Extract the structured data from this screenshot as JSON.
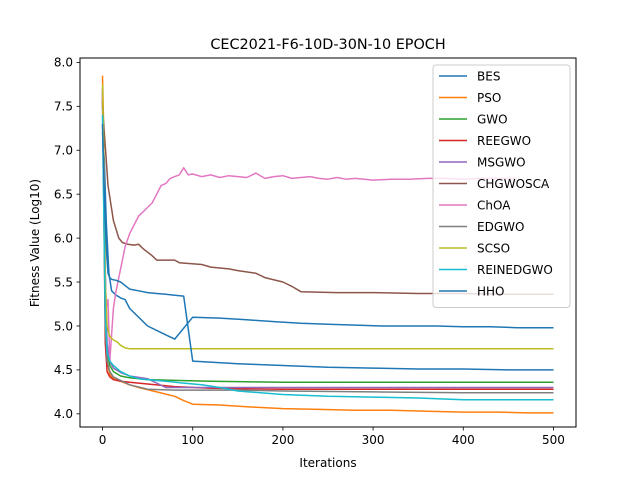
{
  "chart_data": {
    "type": "line",
    "title": "CEC2021-F6-10D-30N-10 EPOCH",
    "xlabel": "Iterations",
    "ylabel": "Fitness Value (Log10)",
    "xlim": [
      -25,
      525
    ],
    "ylim": [
      3.85,
      8.05
    ],
    "xticks": [
      0,
      100,
      200,
      300,
      400,
      500
    ],
    "yticks": [
      4.0,
      4.5,
      5.0,
      5.5,
      6.0,
      6.5,
      7.0,
      7.5,
      8.0
    ],
    "ytick_labels": [
      "4.0",
      "4.5",
      "5.0",
      "5.5",
      "6.0",
      "6.5",
      "7.0",
      "7.5",
      "8.0"
    ],
    "grid": false,
    "legend_position": "top-right",
    "series": [
      {
        "name": "BES",
        "color": "#1f77b4",
        "x": [
          0,
          2,
          4,
          7,
          10,
          15,
          20,
          25,
          30,
          40,
          50,
          60,
          70,
          80,
          100,
          130,
          160,
          190,
          220,
          250,
          280,
          310,
          340,
          370,
          400,
          430,
          460,
          500
        ],
        "y": [
          7.2,
          6.9,
          6.2,
          5.6,
          5.4,
          5.35,
          5.32,
          5.3,
          5.2,
          5.1,
          5.0,
          4.95,
          4.9,
          4.85,
          5.1,
          5.09,
          5.07,
          5.05,
          5.03,
          5.02,
          5.01,
          5.0,
          5.0,
          5.0,
          4.99,
          4.99,
          4.98,
          4.98
        ]
      },
      {
        "name": "PSO",
        "color": "#ff7f0e",
        "x": [
          0,
          1,
          3,
          5,
          8,
          12,
          20,
          30,
          40,
          60,
          80,
          90,
          100,
          130,
          160,
          200,
          240,
          280,
          320,
          360,
          400,
          440,
          470,
          500
        ],
        "y": [
          7.85,
          7.4,
          5.2,
          4.6,
          4.45,
          4.4,
          4.37,
          4.33,
          4.3,
          4.25,
          4.2,
          4.15,
          4.11,
          4.1,
          4.08,
          4.06,
          4.05,
          4.04,
          4.04,
          4.03,
          4.02,
          4.02,
          4.01,
          4.01
        ]
      },
      {
        "name": "GWO",
        "color": "#2ca02c",
        "x": [
          0,
          1,
          3,
          5,
          8,
          12,
          20,
          30,
          50,
          80,
          120,
          200,
          300,
          400,
          500
        ],
        "y": [
          7.7,
          7.0,
          5.3,
          4.7,
          4.55,
          4.48,
          4.43,
          4.41,
          4.39,
          4.38,
          4.37,
          4.36,
          4.36,
          4.36,
          4.36
        ]
      },
      {
        "name": "REEGWO",
        "color": "#d62728",
        "x": [
          0,
          1,
          3,
          5,
          8,
          12,
          20,
          30,
          50,
          80,
          120,
          200,
          300,
          400,
          500
        ],
        "y": [
          7.6,
          6.8,
          4.8,
          4.48,
          4.42,
          4.39,
          4.37,
          4.36,
          4.34,
          4.31,
          4.29,
          4.28,
          4.28,
          4.28,
          4.28
        ]
      },
      {
        "name": "MSGWO",
        "color": "#9467bd",
        "x": [
          0,
          1,
          3,
          5,
          8,
          12,
          20,
          30,
          50,
          70,
          100,
          150,
          200,
          300,
          400,
          500
        ],
        "y": [
          7.65,
          7.2,
          5.6,
          4.8,
          4.6,
          4.52,
          4.47,
          4.43,
          4.4,
          4.3,
          4.3,
          4.3,
          4.3,
          4.3,
          4.3,
          4.3
        ]
      },
      {
        "name": "CHGWOSCA",
        "color": "#8c564b",
        "x": [
          0,
          2,
          4,
          6,
          9,
          12,
          15,
          18,
          22,
          28,
          35,
          40,
          45,
          55,
          60,
          80,
          85,
          110,
          120,
          140,
          150,
          170,
          180,
          200,
          210,
          220,
          260,
          300,
          350,
          400,
          450,
          500
        ],
        "y": [
          7.5,
          7.2,
          6.9,
          6.6,
          6.4,
          6.2,
          6.1,
          6.0,
          5.95,
          5.93,
          5.92,
          5.93,
          5.88,
          5.8,
          5.75,
          5.75,
          5.72,
          5.7,
          5.67,
          5.65,
          5.63,
          5.6,
          5.55,
          5.5,
          5.45,
          5.39,
          5.38,
          5.38,
          5.37,
          5.37,
          5.36,
          5.36
        ]
      },
      {
        "name": "ChOA",
        "color": "#e377c2",
        "x": [
          0,
          2,
          4,
          6,
          8,
          10,
          12,
          15,
          20,
          25,
          30,
          35,
          40,
          45,
          50,
          55,
          60,
          65,
          70,
          75,
          80,
          85,
          90,
          95,
          100,
          110,
          120,
          130,
          140,
          150,
          160,
          170,
          180,
          190,
          200,
          210,
          220,
          230,
          240,
          250,
          260,
          270,
          280,
          290,
          300,
          320,
          340,
          360,
          380,
          400,
          420,
          440,
          460
        ],
        "y": [
          7.7,
          6.0,
          5.2,
          5.3,
          4.6,
          4.9,
          5.2,
          5.4,
          5.65,
          5.9,
          6.05,
          6.15,
          6.25,
          6.3,
          6.35,
          6.4,
          6.5,
          6.6,
          6.62,
          6.68,
          6.7,
          6.72,
          6.8,
          6.72,
          6.73,
          6.7,
          6.72,
          6.69,
          6.71,
          6.7,
          6.69,
          6.74,
          6.68,
          6.7,
          6.71,
          6.68,
          6.69,
          6.7,
          6.68,
          6.67,
          6.69,
          6.67,
          6.68,
          6.67,
          6.66,
          6.67,
          6.67,
          6.68,
          6.68,
          6.67,
          6.68,
          6.68,
          6.68
        ]
      },
      {
        "name": "EDGWO",
        "color": "#7f7f7f",
        "x": [
          0,
          1,
          3,
          5,
          8,
          12,
          20,
          30,
          50,
          80,
          100,
          150,
          200,
          300,
          400,
          500
        ],
        "y": [
          7.55,
          7.0,
          5.0,
          4.6,
          4.48,
          4.42,
          4.38,
          4.33,
          4.28,
          4.27,
          4.27,
          4.27,
          4.26,
          4.25,
          4.24,
          4.24
        ]
      },
      {
        "name": "SCSO",
        "color": "#bcbd22",
        "x": [
          0,
          1,
          3,
          5,
          8,
          12,
          16,
          20,
          25,
          30,
          50,
          100,
          200,
          300,
          400,
          500
        ],
        "y": [
          7.75,
          7.2,
          5.5,
          5.0,
          4.88,
          4.84,
          4.82,
          4.78,
          4.75,
          4.74,
          4.74,
          4.74,
          4.74,
          4.74,
          4.74,
          4.74
        ]
      },
      {
        "name": "REINEDGWO",
        "color": "#17becf",
        "x": [
          0,
          1,
          3,
          5,
          8,
          12,
          20,
          30,
          40,
          50,
          70,
          90,
          110,
          130,
          150,
          200,
          250,
          300,
          350,
          400,
          450,
          500
        ],
        "y": [
          7.4,
          6.6,
          5.1,
          4.7,
          4.6,
          4.55,
          4.48,
          4.43,
          4.4,
          4.39,
          4.37,
          4.35,
          4.33,
          4.3,
          4.26,
          4.22,
          4.2,
          4.19,
          4.18,
          4.16,
          4.16,
          4.16
        ]
      },
      {
        "name": "HHO",
        "color": "#1f77b4",
        "x": [
          0,
          2,
          4,
          6,
          8,
          10,
          15,
          20,
          30,
          40,
          50,
          60,
          70,
          80,
          90,
          100,
          150,
          200,
          250,
          300,
          350,
          400,
          450,
          500
        ],
        "y": [
          7.3,
          6.5,
          5.9,
          5.6,
          5.55,
          5.53,
          5.52,
          5.5,
          5.42,
          5.4,
          5.38,
          5.37,
          5.36,
          5.35,
          5.34,
          4.6,
          4.57,
          4.55,
          4.53,
          4.52,
          4.51,
          4.51,
          4.5,
          4.5
        ]
      }
    ]
  }
}
